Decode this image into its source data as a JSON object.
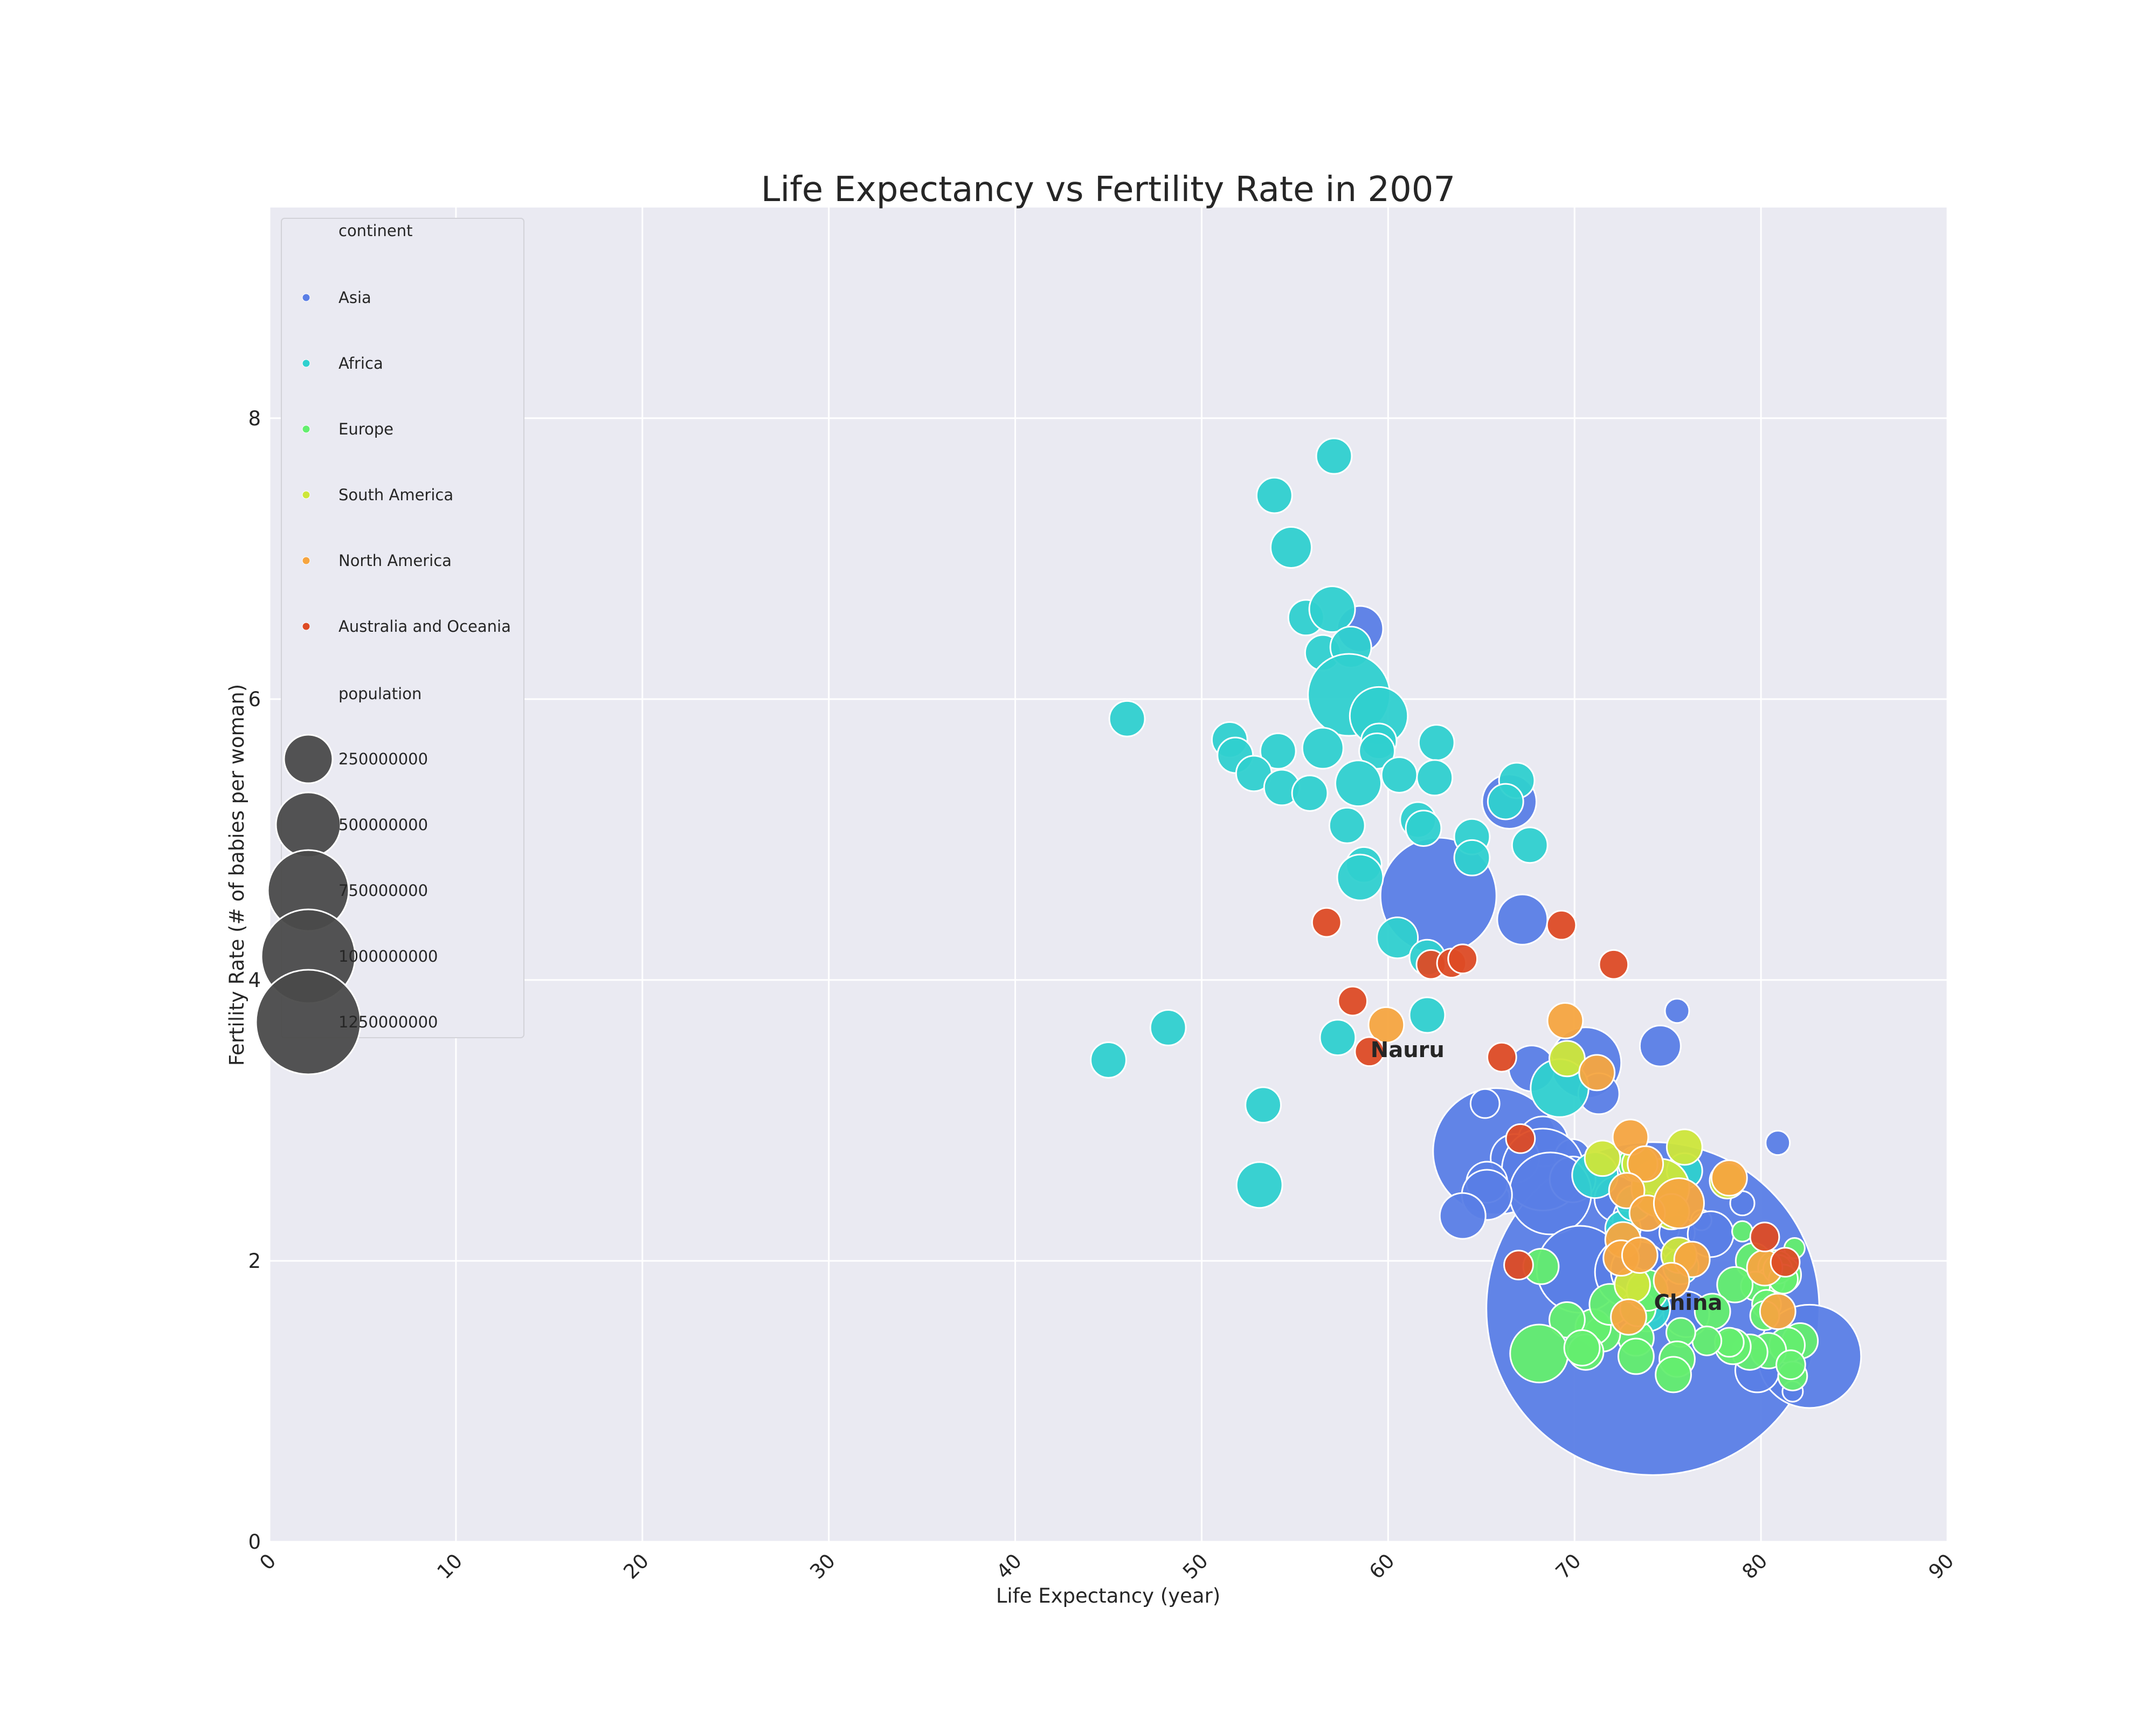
{
  "colors": {
    "Asia": "#5a7ee6",
    "Africa": "#2fd0cf",
    "Europe": "#64ee6f",
    "South America": "#cde63a",
    "North America": "#f6a540",
    "Australia and Oceania": "#dd4b25",
    "size_legend": "#4a4a4a"
  },
  "chart_data": {
    "type": "scatter",
    "title": "Life Expectancy vs Fertility Rate in 2007",
    "xlabel": "Life Expectancy (year)",
    "ylabel": "Fertility Rate (# of babies per woman)",
    "xlim": [
      0,
      90
    ],
    "ylim": [
      0,
      9.5
    ],
    "x_ticks": [
      "0",
      "10",
      "20",
      "30",
      "40",
      "50",
      "60",
      "70",
      "80",
      "90"
    ],
    "y_ticks": [
      "0",
      "2",
      "4",
      "6",
      "8"
    ],
    "grid": true,
    "legend": {
      "placement": "upper-left",
      "hue_title": "continent",
      "hue_entries": [
        "Asia",
        "Africa",
        "Europe",
        "South America",
        "North America",
        "Australia and Oceania"
      ],
      "size_title": "population",
      "size_entries": [
        "250000000",
        "500000000",
        "750000000",
        "1000000000",
        "1250000000"
      ]
    },
    "annotations": [
      {
        "text": "Nauru",
        "x": 59.0,
        "y": 3.5
      },
      {
        "text": "China",
        "x": 74.2,
        "y": 1.7
      }
    ],
    "series": [
      {
        "name": "Asia",
        "points": [
          [
            65.8,
            2.78,
            190
          ],
          [
            74.2,
            1.66,
            1320
          ],
          [
            58.5,
            6.5,
            25
          ],
          [
            62.7,
            4.6,
            160
          ],
          [
            66.5,
            5.27,
            35
          ],
          [
            67.2,
            4.43,
            30
          ],
          [
            75.5,
            3.78,
            7
          ],
          [
            74.6,
            3.53,
            20
          ],
          [
            70.6,
            3.41,
            60
          ],
          [
            67.7,
            3.37,
            25
          ],
          [
            71.3,
            3.19,
            20
          ],
          [
            65.2,
            3.12,
            10
          ],
          [
            68.3,
            2.85,
            30
          ],
          [
            80.9,
            2.84,
            7
          ],
          [
            69.9,
            2.74,
            15
          ],
          [
            66.8,
            2.73,
            28
          ],
          [
            68.3,
            2.65,
            80
          ],
          [
            65.3,
            2.56,
            20
          ],
          [
            69.9,
            2.58,
            25
          ],
          [
            68.7,
            2.48,
            80
          ],
          [
            65.3,
            2.47,
            30
          ],
          [
            72.3,
            2.44,
            25
          ],
          [
            79.0,
            2.41,
            7
          ],
          [
            64.0,
            2.32,
            25
          ],
          [
            73.6,
            2.29,
            40
          ],
          [
            76.8,
            2.29,
            5
          ],
          [
            74.3,
            2.25,
            30
          ],
          [
            75.5,
            2.2,
            15
          ],
          [
            77.3,
            2.19,
            25
          ],
          [
            70.3,
            1.94,
            90
          ],
          [
            73.0,
            1.92,
            60
          ],
          [
            73.5,
            1.93,
            40
          ],
          [
            76.0,
            1.62,
            25
          ],
          [
            82.6,
            1.32,
            127
          ],
          [
            79.8,
            1.22,
            23
          ],
          [
            81.7,
            1.07,
            5
          ],
          [
            74.0,
            1.67,
            10
          ]
        ]
      },
      {
        "name": "Africa",
        "points": [
          [
            57.1,
            7.73,
            15
          ],
          [
            53.9,
            7.45,
            15
          ],
          [
            54.8,
            7.08,
            20
          ],
          [
            55.6,
            6.58,
            15
          ],
          [
            57.0,
            6.64,
            25
          ],
          [
            56.5,
            6.33,
            15
          ],
          [
            58.0,
            6.37,
            20
          ],
          [
            57.9,
            6.03,
            80
          ],
          [
            59.5,
            5.88,
            40
          ],
          [
            46.0,
            5.86,
            15
          ],
          [
            51.5,
            5.71,
            15
          ],
          [
            51.8,
            5.6,
            15
          ],
          [
            54.1,
            5.63,
            15
          ],
          [
            56.5,
            5.65,
            20
          ],
          [
            59.5,
            5.7,
            15
          ],
          [
            62.6,
            5.69,
            15
          ],
          [
            59.4,
            5.63,
            15
          ],
          [
            52.8,
            5.47,
            15
          ],
          [
            54.3,
            5.37,
            15
          ],
          [
            55.8,
            5.33,
            15
          ],
          [
            58.4,
            5.4,
            25
          ],
          [
            60.6,
            5.46,
            15
          ],
          [
            62.5,
            5.44,
            15
          ],
          [
            66.9,
            5.42,
            15
          ],
          [
            66.3,
            5.27,
            15
          ],
          [
            57.8,
            5.1,
            15
          ],
          [
            61.6,
            5.14,
            15
          ],
          [
            61.9,
            5.08,
            15
          ],
          [
            64.5,
            5.02,
            15
          ],
          [
            67.6,
            4.96,
            15
          ],
          [
            64.5,
            4.87,
            15
          ],
          [
            58.7,
            4.82,
            15
          ],
          [
            58.5,
            4.73,
            25
          ],
          [
            60.5,
            4.3,
            20
          ],
          [
            62.1,
            4.16,
            15
          ],
          [
            62.1,
            3.75,
            15
          ],
          [
            48.2,
            3.66,
            15
          ],
          [
            57.3,
            3.59,
            15
          ],
          [
            45.0,
            3.43,
            15
          ],
          [
            69.2,
            3.23,
            40
          ],
          [
            53.3,
            3.11,
            15
          ],
          [
            71.1,
            2.61,
            25
          ],
          [
            75.9,
            2.64,
            15
          ],
          [
            53.1,
            2.54,
            25
          ],
          [
            72.6,
            2.23,
            15
          ],
          [
            73.2,
            2.41,
            15
          ],
          [
            75.7,
            1.96,
            15
          ],
          [
            73.9,
            1.66,
            25
          ]
        ]
      },
      {
        "name": "Europe",
        "points": [
          [
            81.8,
            2.09,
            5
          ],
          [
            79.0,
            2.21,
            5
          ],
          [
            79.6,
            2.0,
            15
          ],
          [
            80.8,
            1.95,
            15
          ],
          [
            81.2,
            1.9,
            15
          ],
          [
            80.5,
            1.85,
            10
          ],
          [
            79.7,
            1.82,
            10
          ],
          [
            78.6,
            1.83,
            15
          ],
          [
            77.4,
            1.64,
            15
          ],
          [
            80.3,
            1.69,
            10
          ],
          [
            80.2,
            1.61,
            10
          ],
          [
            82.1,
            1.43,
            15
          ],
          [
            81.4,
            1.4,
            15
          ],
          [
            80.4,
            1.36,
            15
          ],
          [
            79.4,
            1.35,
            15
          ],
          [
            78.5,
            1.39,
            15
          ],
          [
            78.3,
            1.42,
            10
          ],
          [
            77.1,
            1.43,
            10
          ],
          [
            75.7,
            1.49,
            10
          ],
          [
            75.5,
            1.3,
            15
          ],
          [
            73.3,
            1.45,
            15
          ],
          [
            71.5,
            1.48,
            15
          ],
          [
            71.0,
            1.53,
            15
          ],
          [
            69.6,
            1.58,
            15
          ],
          [
            68.1,
            1.34,
            40
          ],
          [
            70.6,
            1.35,
            15
          ],
          [
            70.4,
            1.38,
            15
          ],
          [
            73.3,
            1.32,
            15
          ],
          [
            75.3,
            1.19,
            15
          ],
          [
            81.7,
            1.18,
            10
          ],
          [
            81.6,
            1.26,
            10
          ],
          [
            71.9,
            1.69,
            20
          ],
          [
            73.4,
            1.66,
            15
          ],
          [
            73.9,
            1.79,
            20
          ],
          [
            80.9,
            1.94,
            10
          ],
          [
            81.2,
            1.87,
            10
          ],
          [
            68.2,
            1.96,
            15
          ],
          [
            73.3,
            2.69,
            15
          ]
        ]
      },
      {
        "name": "South America",
        "points": [
          [
            69.6,
            3.44,
            15
          ],
          [
            71.5,
            2.73,
            15
          ],
          [
            75.9,
            2.81,
            15
          ],
          [
            78.2,
            2.57,
            15
          ],
          [
            74.6,
            2.52,
            40
          ],
          [
            75.2,
            2.35,
            15
          ],
          [
            75.6,
            2.04,
            15
          ],
          [
            73.1,
            1.83,
            15
          ],
          [
            73.5,
            2.69,
            15
          ]
        ]
      },
      {
        "name": "North America",
        "points": [
          [
            59.9,
            3.68,
            15
          ],
          [
            69.5,
            3.71,
            15
          ],
          [
            71.2,
            3.34,
            15
          ],
          [
            73.0,
            2.88,
            15
          ],
          [
            73.8,
            2.69,
            15
          ],
          [
            78.3,
            2.59,
            15
          ],
          [
            72.8,
            2.5,
            15
          ],
          [
            73.9,
            2.34,
            15
          ],
          [
            75.6,
            2.41,
            30
          ],
          [
            72.6,
            2.15,
            15
          ],
          [
            72.5,
            2.02,
            15
          ],
          [
            73.5,
            2.04,
            15
          ],
          [
            76.3,
            2.01,
            15
          ],
          [
            75.2,
            1.86,
            15
          ],
          [
            80.2,
            1.95,
            15
          ],
          [
            80.9,
            1.64,
            15
          ],
          [
            72.9,
            1.6,
            15
          ]
        ]
      },
      {
        "name": "Australia and Oceania",
        "points": [
          [
            59.0,
            3.49,
            10
          ],
          [
            56.7,
            4.41,
            10
          ],
          [
            58.1,
            3.85,
            10
          ],
          [
            62.3,
            4.11,
            10
          ],
          [
            63.4,
            4.12,
            10
          ],
          [
            64.0,
            4.15,
            10
          ],
          [
            66.1,
            3.45,
            10
          ],
          [
            69.3,
            4.39,
            10
          ],
          [
            72.1,
            4.11,
            10
          ],
          [
            67.1,
            2.87,
            10
          ],
          [
            67.0,
            1.97,
            10
          ],
          [
            80.2,
            2.17,
            10
          ],
          [
            81.3,
            1.99,
            10
          ]
        ]
      }
    ]
  }
}
